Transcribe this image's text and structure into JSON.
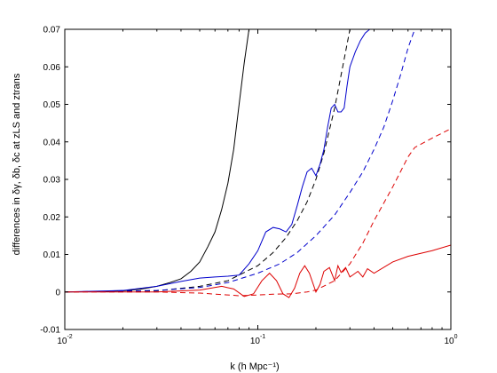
{
  "chart_data": {
    "type": "line",
    "xscale": "log",
    "xlim": [
      0.01,
      1
    ],
    "ylim": [
      -0.01,
      0.07
    ],
    "xlabel": "k (h Mpc⁻¹)",
    "ylabel": "differences in δγ, δb, δc at zLS and ztrans",
    "x_ticks": [
      {
        "value": 0.01,
        "base": "10",
        "exp": "-2"
      },
      {
        "value": 0.1,
        "base": "10",
        "exp": "-1"
      },
      {
        "value": 1,
        "base": "10",
        "exp": "0"
      }
    ],
    "y_ticks": [
      "-0.01",
      "0",
      "0.01",
      "0.02",
      "0.03",
      "0.04",
      "0.05",
      "0.06",
      "0.07"
    ],
    "y_tick_values": [
      -0.01,
      0,
      0.01,
      0.02,
      0.03,
      0.04,
      0.05,
      0.06,
      0.07
    ],
    "colors": {
      "black": "#000000",
      "blue": "#0000cc",
      "red": "#dd0000"
    },
    "series": [
      {
        "color": "black",
        "dash": "solid",
        "x": [
          0.01,
          0.015,
          0.02,
          0.025,
          0.03,
          0.035,
          0.04,
          0.045,
          0.05,
          0.055,
          0.06,
          0.065,
          0.07,
          0.075,
          0.08,
          0.085,
          0.09
        ],
        "y": [
          0,
          0.0001,
          0.0003,
          0.0008,
          0.0015,
          0.0025,
          0.0035,
          0.0055,
          0.008,
          0.012,
          0.016,
          0.022,
          0.029,
          0.038,
          0.05,
          0.061,
          0.07
        ]
      },
      {
        "color": "black",
        "dash": "dashed",
        "x": [
          0.01,
          0.03,
          0.05,
          0.07,
          0.08,
          0.1,
          0.12,
          0.14,
          0.16,
          0.18,
          0.2,
          0.22,
          0.25,
          0.28,
          0.3
        ],
        "y": [
          0,
          0.0003,
          0.0015,
          0.003,
          0.0045,
          0.007,
          0.0105,
          0.0145,
          0.019,
          0.024,
          0.03,
          0.037,
          0.049,
          0.062,
          0.07
        ]
      },
      {
        "color": "blue",
        "dash": "solid",
        "x": [
          0.01,
          0.02,
          0.03,
          0.04,
          0.05,
          0.06,
          0.07,
          0.08,
          0.09,
          0.1,
          0.11,
          0.12,
          0.13,
          0.14,
          0.15,
          0.16,
          0.17,
          0.18,
          0.19,
          0.2,
          0.21,
          0.22,
          0.23,
          0.24,
          0.25,
          0.26,
          0.27,
          0.28,
          0.29,
          0.3,
          0.32,
          0.34,
          0.36,
          0.38
        ],
        "y": [
          0,
          0.0004,
          0.0015,
          0.0028,
          0.0037,
          0.004,
          0.0042,
          0.0045,
          0.0075,
          0.011,
          0.016,
          0.0172,
          0.0168,
          0.016,
          0.018,
          0.023,
          0.028,
          0.032,
          0.033,
          0.031,
          0.034,
          0.038,
          0.044,
          0.049,
          0.05,
          0.048,
          0.048,
          0.049,
          0.055,
          0.06,
          0.064,
          0.067,
          0.069,
          0.07
        ]
      },
      {
        "color": "blue",
        "dash": "dashed",
        "x": [
          0.01,
          0.03,
          0.05,
          0.07,
          0.1,
          0.13,
          0.16,
          0.2,
          0.25,
          0.3,
          0.35,
          0.4,
          0.45,
          0.5,
          0.55,
          0.6,
          0.65
        ],
        "y": [
          0,
          0.0004,
          0.0012,
          0.0025,
          0.005,
          0.0075,
          0.0105,
          0.015,
          0.0205,
          0.0265,
          0.032,
          0.038,
          0.044,
          0.051,
          0.058,
          0.065,
          0.07
        ]
      },
      {
        "color": "red",
        "dash": "dashed",
        "x": [
          0.01,
          0.03,
          0.05,
          0.07,
          0.08,
          0.1,
          0.12,
          0.15,
          0.18,
          0.2,
          0.25,
          0.3,
          0.35,
          0.4,
          0.5,
          0.6,
          0.65,
          0.8,
          1.0
        ],
        "y": [
          0,
          0,
          -0.0003,
          -0.0008,
          -0.001,
          -0.0008,
          -0.0006,
          -0.0005,
          0,
          0.0005,
          0.003,
          0.0075,
          0.013,
          0.019,
          0.028,
          0.036,
          0.0385,
          0.041,
          0.0435
        ]
      },
      {
        "color": "red",
        "dash": "solid",
        "x": [
          0.01,
          0.03,
          0.05,
          0.065,
          0.075,
          0.085,
          0.095,
          0.105,
          0.115,
          0.125,
          0.135,
          0.145,
          0.155,
          0.165,
          0.175,
          0.185,
          0.2,
          0.21,
          0.22,
          0.235,
          0.25,
          0.26,
          0.27,
          0.285,
          0.3,
          0.31,
          0.33,
          0.35,
          0.37,
          0.4,
          0.5,
          0.6,
          0.8,
          1.0
        ],
        "y": [
          0,
          0,
          0.0005,
          0.0015,
          0.0008,
          -0.0012,
          -0.0005,
          0.003,
          0.005,
          0.003,
          -0.0005,
          -0.0015,
          0.001,
          0.005,
          0.007,
          0.005,
          0,
          0.002,
          0.0055,
          0.0065,
          0.003,
          0.007,
          0.0052,
          0.0065,
          0.004,
          0.0045,
          0.0055,
          0.004,
          0.0062,
          0.005,
          0.008,
          0.0095,
          0.011,
          0.0125
        ]
      }
    ]
  }
}
